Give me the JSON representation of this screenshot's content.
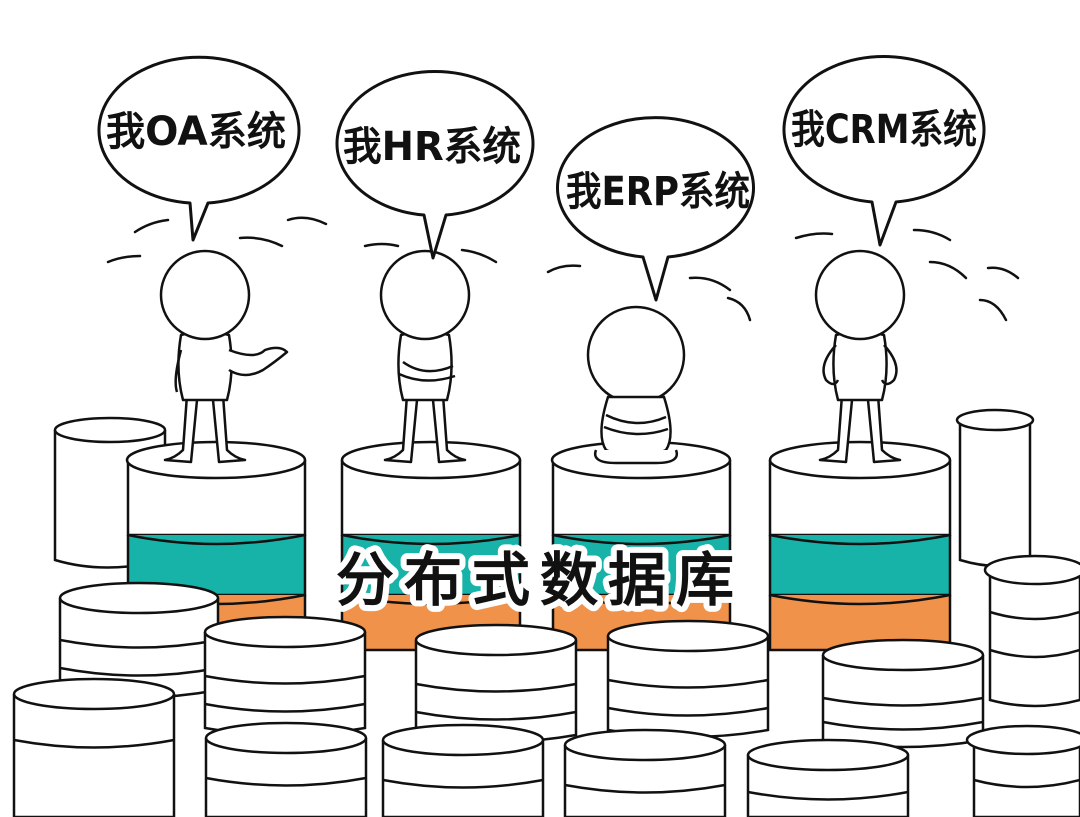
{
  "bubbles": [
    {
      "text": "我OA系统"
    },
    {
      "text": "我HR系统"
    },
    {
      "text": "我ERP系统"
    },
    {
      "text": "我CRM系统"
    }
  ],
  "title": "分布式数据库",
  "colors": {
    "stroke": "#111111",
    "white": "#ffffff",
    "teal": "#17b3a9",
    "orange": "#f0924a"
  }
}
